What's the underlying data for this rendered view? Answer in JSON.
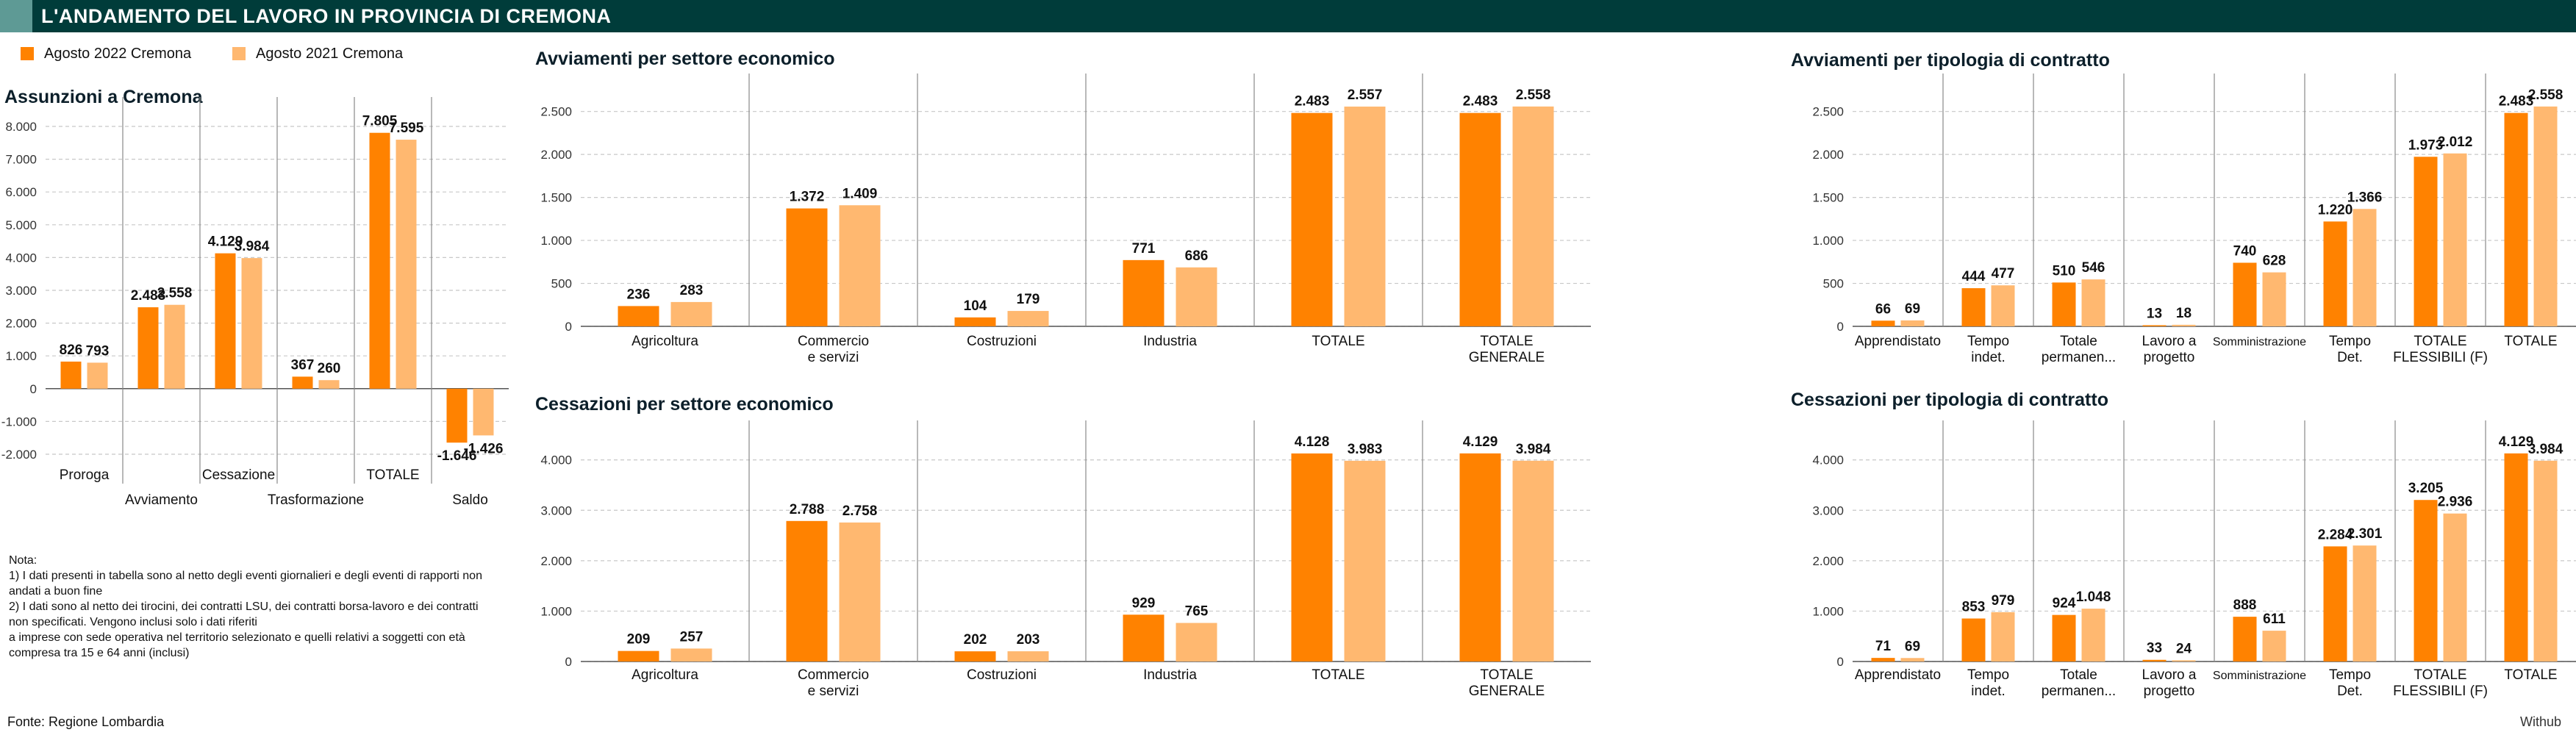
{
  "header": {
    "title": "L'ANDAMENTO DEL LAVORO IN PROVINCIA DI CREMONA"
  },
  "legend": [
    {
      "label": "Agosto 2022 Cremona",
      "color": "#ff8200"
    },
    {
      "label": "Agosto 2021 Cremona",
      "color": "#ffb870"
    }
  ],
  "colors": {
    "y2022": "#ff8200",
    "y2021": "#ffb870",
    "grid": "#c8c8c8",
    "separator": "#888888"
  },
  "chart_data": [
    {
      "id": "assunzioni",
      "type": "bar",
      "title": "Assunzioni a Cremona",
      "categories": [
        "Proroga",
        "Avviamento",
        "Cessazione",
        "Trasformazione",
        "TOTALE",
        "Saldo"
      ],
      "series": [
        {
          "name": "Agosto 2022 Cremona",
          "values": [
            826,
            2483,
            4129,
            367,
            7805,
            -1646
          ],
          "labels": [
            "826",
            "2.483",
            "4.129",
            "367",
            "7.805",
            "-1.646"
          ]
        },
        {
          "name": "Agosto 2021 Cremona",
          "values": [
            793,
            2558,
            3984,
            260,
            7595,
            -1426
          ],
          "labels": [
            "793",
            "2.558",
            "3.984",
            "260",
            "7.595",
            "-1.426"
          ]
        }
      ],
      "yticks": [
        8000,
        7000,
        6000,
        5000,
        4000,
        3000,
        2000,
        1000,
        0,
        -1000,
        -2000
      ],
      "ytick_labels": [
        "8.000",
        "7.000",
        "6.000",
        "5.000",
        "4.000",
        "3.000",
        "2.000",
        "1.000",
        "0",
        "-1.000",
        "-2.000"
      ],
      "ylim": [
        -2000,
        8000
      ],
      "grid": true
    },
    {
      "id": "avv-settore",
      "type": "bar",
      "title": "Avviamenti per settore economico",
      "categories": [
        "Agricoltura",
        "Commercio e servizi",
        "Costruzioni",
        "Industria",
        "TOTALE",
        "TOTALE GENERALE"
      ],
      "category_lines": [
        [
          "Agricoltura"
        ],
        [
          "Commercio",
          "e servizi"
        ],
        [
          "Costruzioni"
        ],
        [
          "Industria"
        ],
        [
          "TOTALE"
        ],
        [
          "TOTALE",
          "GENERALE"
        ]
      ],
      "series": [
        {
          "name": "Agosto 2022 Cremona",
          "values": [
            236,
            1372,
            104,
            771,
            2483,
            2483
          ],
          "labels": [
            "236",
            "1.372",
            "104",
            "771",
            "2.483",
            "2.483"
          ]
        },
        {
          "name": "Agosto 2021 Cremona",
          "values": [
            283,
            1409,
            179,
            686,
            2557,
            2558
          ],
          "labels": [
            "283",
            "1.409",
            "179",
            "686",
            "2.557",
            "2.558"
          ]
        }
      ],
      "yticks": [
        2500,
        2000,
        1500,
        1000,
        500,
        0
      ],
      "ytick_labels": [
        "2.500",
        "2.000",
        "1.500",
        "1.000",
        "500",
        "0"
      ],
      "ylim": [
        0,
        2600
      ],
      "grid": true
    },
    {
      "id": "ces-settore",
      "type": "bar",
      "title": "Cessazioni per settore economico",
      "categories": [
        "Agricoltura",
        "Commercio e servizi",
        "Costruzioni",
        "Industria",
        "TOTALE",
        "TOTALE GENERALE"
      ],
      "category_lines": [
        [
          "Agricoltura"
        ],
        [
          "Commercio",
          "e servizi"
        ],
        [
          "Costruzioni"
        ],
        [
          "Industria"
        ],
        [
          "TOTALE"
        ],
        [
          "TOTALE",
          "GENERALE"
        ]
      ],
      "series": [
        {
          "name": "Agosto 2022 Cremona",
          "values": [
            209,
            2788,
            202,
            929,
            4128,
            4129
          ],
          "labels": [
            "209",
            "2.788",
            "202",
            "929",
            "4.128",
            "4.129"
          ]
        },
        {
          "name": "Agosto 2021 Cremona",
          "values": [
            257,
            2758,
            203,
            765,
            3983,
            3984
          ],
          "labels": [
            "257",
            "2.758",
            "203",
            "765",
            "3.983",
            "3.984"
          ]
        }
      ],
      "yticks": [
        4000,
        3000,
        2000,
        1000,
        0
      ],
      "ytick_labels": [
        "4.000",
        "3.000",
        "2.000",
        "1.000",
        "0"
      ],
      "ylim": [
        0,
        4200
      ],
      "grid": true
    },
    {
      "id": "avv-contratto",
      "type": "bar",
      "title": "Avviamenti per tipologia di contratto",
      "categories": [
        "Apprendistato",
        "Tempo indet.",
        "Totale permanen...",
        "Lavoro a progetto",
        "Somministrazione",
        "Tempo Det.",
        "TOTALE FLESSIBILI (F)",
        "TOTALE"
      ],
      "category_lines": [
        [
          "Apprendistato"
        ],
        [
          "Tempo",
          "indet."
        ],
        [
          "Totale",
          "permanen..."
        ],
        [
          "Lavoro a",
          "progetto"
        ],
        [
          "Somministrazione"
        ],
        [
          "Tempo",
          "Det."
        ],
        [
          "TOTALE",
          "FLESSIBILI (F)"
        ],
        [
          "TOTALE"
        ]
      ],
      "series": [
        {
          "name": "Agosto 2022 Cremona",
          "values": [
            66,
            444,
            510,
            13,
            740,
            1220,
            1973,
            2483
          ],
          "labels": [
            "66",
            "444",
            "510",
            "13",
            "740",
            "1.220",
            "1.973",
            "2.483"
          ]
        },
        {
          "name": "Agosto 2021 Cremona",
          "values": [
            69,
            477,
            546,
            18,
            628,
            1366,
            2012,
            2558
          ],
          "labels": [
            "69",
            "477",
            "546",
            "18",
            "628",
            "1.366",
            "2.012",
            "2.558"
          ]
        }
      ],
      "yticks": [
        2500,
        2000,
        1500,
        1000,
        500,
        0
      ],
      "ytick_labels": [
        "2.500",
        "2.000",
        "1.500",
        "1.000",
        "500",
        "0"
      ],
      "ylim": [
        0,
        2600
      ],
      "grid": true
    },
    {
      "id": "ces-contratto",
      "type": "bar",
      "title": "Cessazioni per tipologia di contratto",
      "categories": [
        "Apprendistato",
        "Tempo indet.",
        "Totale permanen...",
        "Lavoro a progetto",
        "Somministrazione",
        "Tempo Det.",
        "TOTALE FLESSIBILI (F)",
        "TOTALE"
      ],
      "category_lines": [
        [
          "Apprendistato"
        ],
        [
          "Tempo",
          "indet."
        ],
        [
          "Totale",
          "permanen..."
        ],
        [
          "Lavoro a",
          "progetto"
        ],
        [
          "Somministrazione"
        ],
        [
          "Tempo",
          "Det."
        ],
        [
          "TOTALE",
          "FLESSIBILI (F)"
        ],
        [
          "TOTALE"
        ]
      ],
      "series": [
        {
          "name": "Agosto 2022 Cremona",
          "values": [
            71,
            853,
            924,
            33,
            888,
            2284,
            3205,
            4129
          ],
          "labels": [
            "71",
            "853",
            "924",
            "33",
            "888",
            "2.284",
            "3.205",
            "4.129"
          ]
        },
        {
          "name": "Agosto 2021 Cremona",
          "values": [
            69,
            979,
            1048,
            24,
            611,
            2301,
            2936,
            3984
          ],
          "labels": [
            "69",
            "979",
            "1.048",
            "24",
            "611",
            "2.301",
            "2.936",
            "3.984"
          ]
        }
      ],
      "yticks": [
        4000,
        3000,
        2000,
        1000,
        0
      ],
      "ytick_labels": [
        "4.000",
        "3.000",
        "2.000",
        "1.000",
        "0"
      ],
      "ylim": [
        0,
        4200
      ],
      "grid": true
    }
  ],
  "note": {
    "lines": [
      "Nota:",
      "1) I dati presenti in tabella sono al netto degli eventi giornalieri e degli eventi di rapporti non",
      "andati a buon fine",
      "2) I dati sono al netto dei tirocini, dei contratti LSU, dei contratti borsa-lavoro e dei contratti",
      "non specificati. Vengono inclusi solo i dati riferiti",
      "a imprese con sede operativa nel territorio selezionato e quelli relativi a soggetti con età",
      "compresa tra 15 e 64 anni (inclusi)"
    ]
  },
  "footer": {
    "source": "Fonte: Regione Lombardia",
    "brand": "Withub"
  }
}
